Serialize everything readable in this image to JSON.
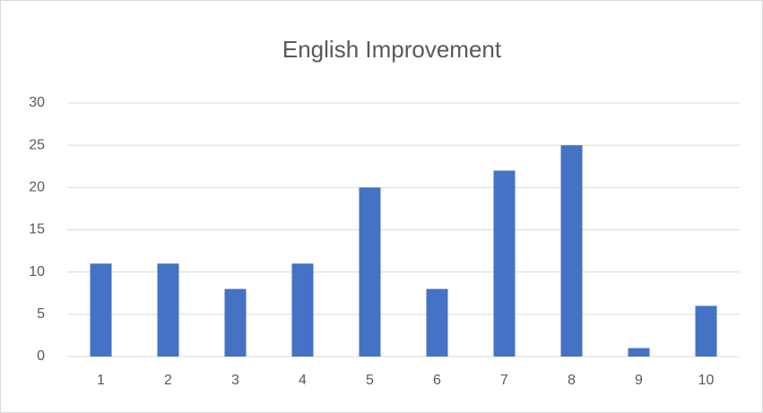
{
  "chart_data": {
    "type": "bar",
    "title": "English Improvement",
    "categories": [
      "1",
      "2",
      "3",
      "4",
      "5",
      "6",
      "7",
      "8",
      "9",
      "10"
    ],
    "values": [
      11,
      11,
      8,
      11,
      20,
      8,
      22,
      25,
      1,
      6
    ],
    "color": "#4472c4",
    "ylim": [
      0,
      30
    ],
    "yticks": [
      0,
      5,
      10,
      15,
      20,
      25,
      30
    ],
    "grid": true
  }
}
